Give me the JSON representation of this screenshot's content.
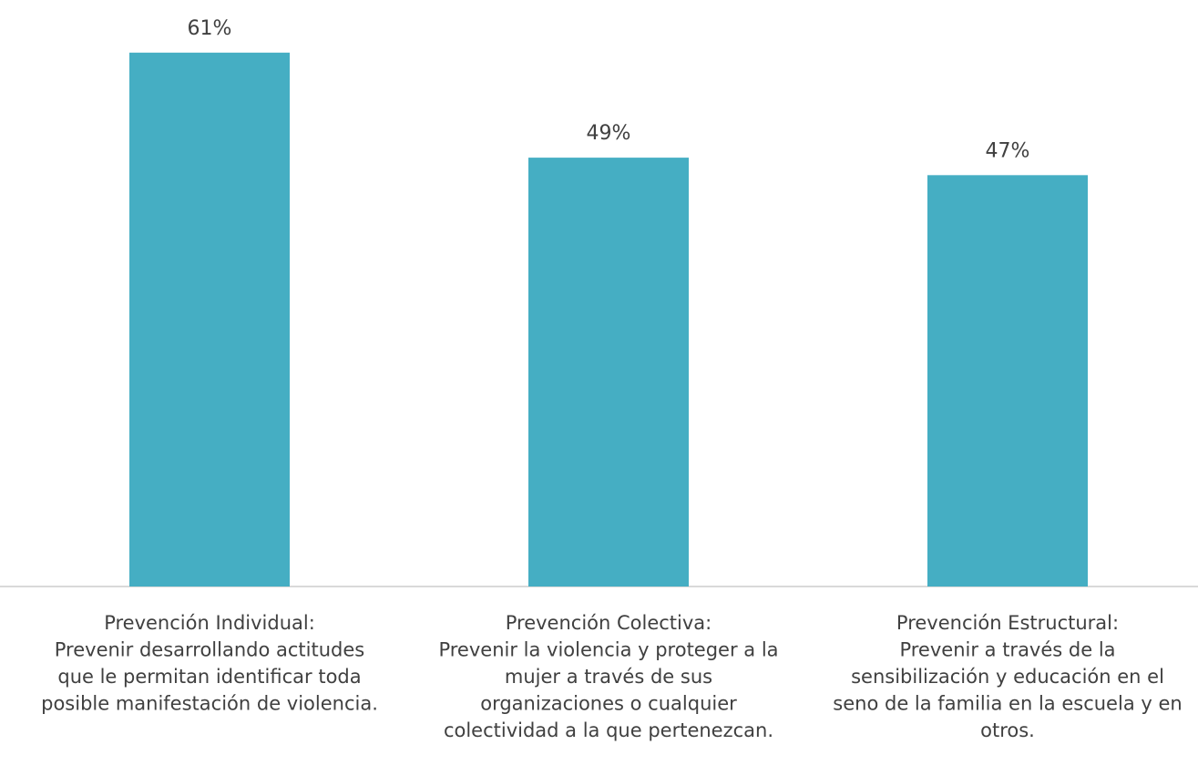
{
  "chart_data": {
    "type": "bar",
    "categories": [
      [
        "Prevención Individual:",
        "Prevenir desarrollando actitudes",
        "que le permitan identificar toda",
        "posible manifestación de violencia."
      ],
      [
        "Prevención Colectiva:",
        "Prevenir la violencia y proteger a la",
        "mujer a través de sus",
        "organizaciones o cualquier",
        "colectividad a la que pertenezcan."
      ],
      [
        "Prevención Estructural:",
        "Prevenir a través de la",
        "sensibilización y educación en el",
        "seno de la familia en la escuela y en",
        "otros."
      ]
    ],
    "values": [
      61,
      49,
      47
    ],
    "value_labels": [
      "61%",
      "49%",
      "47%"
    ],
    "title": "",
    "xlabel": "",
    "ylabel": "",
    "ylim": [
      0,
      65
    ],
    "grid": false,
    "legend": "none",
    "bar_color": "#45AEC3",
    "axis_color": "#D9D9D9",
    "text_color": "#404040"
  }
}
